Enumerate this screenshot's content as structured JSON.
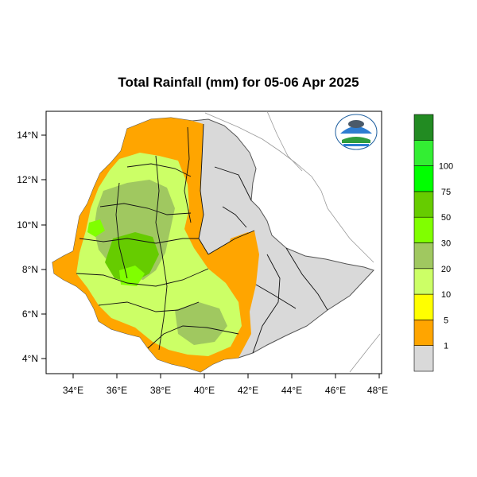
{
  "title": "Total Rainfall (mm) for 05-06 Apr 2025",
  "map": {
    "x_ticks": [
      "34°E",
      "36°E",
      "38°E",
      "40°E",
      "42°E",
      "44°E",
      "46°E",
      "48°E"
    ],
    "y_ticks": [
      "14°N",
      "12°N",
      "10°N",
      "8°N",
      "6°N",
      "4°N"
    ],
    "x_range": [
      32.8,
      48.2
    ],
    "y_range": [
      3.2,
      15.0
    ]
  },
  "legend": {
    "levels": [
      "1",
      "5",
      "10",
      "20",
      "30",
      "50",
      "75",
      "100"
    ],
    "colors": [
      "#d9d9d9",
      "#ffa500",
      "#ffff00",
      "#ccff66",
      "#a0c860",
      "#80ff00",
      "#66cc00",
      "#00ff00",
      "#33ee33",
      "#228b22"
    ]
  },
  "colors": {
    "no_rain": "#d9d9d9",
    "orange": "#ffa500",
    "light_green": "#ccff66",
    "mid_green": "#a0c860",
    "green": "#66cc00",
    "bright_green": "#80ff00"
  },
  "logo_icon": "ethiopian-meteorology-institute-logo"
}
